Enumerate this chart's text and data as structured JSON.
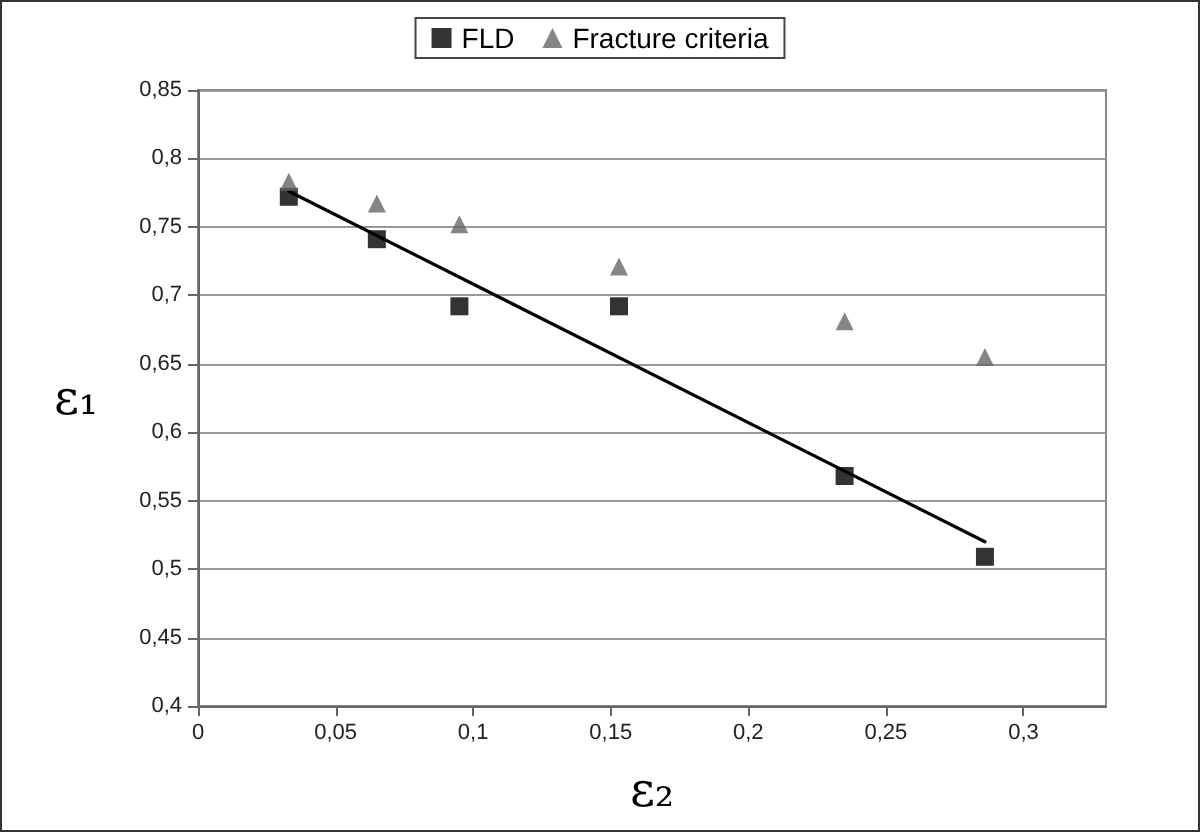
{
  "chart_data": {
    "type": "scatter",
    "xlabel": "ε₂",
    "ylabel": "ε₁",
    "xlim": [
      0,
      0.33
    ],
    "xticks": [
      {
        "value": 0,
        "label": "0"
      },
      {
        "value": 0.05,
        "label": "0,05"
      },
      {
        "value": 0.1,
        "label": "0,1"
      },
      {
        "value": 0.15,
        "label": "0,15"
      },
      {
        "value": 0.2,
        "label": "0,2"
      },
      {
        "value": 0.25,
        "label": "0,25"
      },
      {
        "value": 0.3,
        "label": "0,3"
      }
    ],
    "ylim": [
      0.4,
      0.85
    ],
    "yticks": [
      {
        "value": 0.4,
        "label": "0,4"
      },
      {
        "value": 0.45,
        "label": "0,45"
      },
      {
        "value": 0.5,
        "label": "0,5"
      },
      {
        "value": 0.55,
        "label": "0,55"
      },
      {
        "value": 0.6,
        "label": "0,6"
      },
      {
        "value": 0.65,
        "label": "0,65"
      },
      {
        "value": 0.7,
        "label": "0,7"
      },
      {
        "value": 0.75,
        "label": "0,75"
      },
      {
        "value": 0.8,
        "label": "0,8"
      },
      {
        "value": 0.85,
        "label": "0,85"
      }
    ],
    "x": [
      0.033,
      0.065,
      0.095,
      0.153,
      0.235,
      0.286
    ],
    "series": [
      {
        "name": "FLD",
        "color": "#000000",
        "marker": "square",
        "values": [
          0.772,
          0.741,
          0.692,
          0.692,
          0.568,
          0.509
        ]
      },
      {
        "name": "Fracture criteria",
        "color": "#666666",
        "marker": "triangle",
        "values": [
          0.783,
          0.767,
          0.752,
          0.721,
          0.681,
          0.655
        ]
      },
      {
        "type": "line",
        "color": "#000000",
        "marker": "none",
        "x": [
          0.033,
          0.286
        ],
        "values": [
          0.776,
          0.52
        ]
      }
    ],
    "grid": "y",
    "legend": "top"
  }
}
